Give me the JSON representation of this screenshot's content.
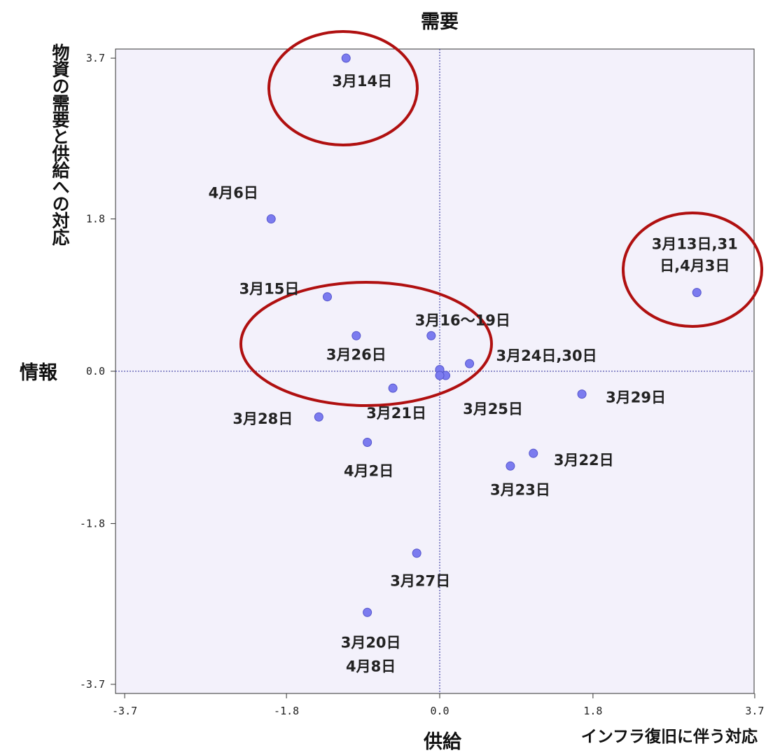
{
  "chart_data": {
    "type": "scatter",
    "title": "",
    "xlim": [
      -3.7,
      3.7
    ],
    "ylim": [
      -3.7,
      3.7
    ],
    "x_ticks": [
      "-3.7",
      "-1.8",
      "0.0",
      "1.8",
      "3.7"
    ],
    "y_ticks": [
      "3.7",
      "1.8",
      "0.0",
      "-1.8",
      "-3.7"
    ],
    "quadrant_labels": {
      "top": "需要",
      "bottom": "供給",
      "left": "情報",
      "bottom_right": "インフラ復旧に伴う対応",
      "left_vertical": "物資の需要と供給への対応"
    },
    "grid": false,
    "colors": {
      "point": "#7b7bef",
      "circle": "#b01010",
      "plot_bg": "#f3f1fb",
      "axis_line": "#2a2a9a"
    },
    "points": [
      {
        "label": "3月14日",
        "x": -1.1,
        "y": 3.7
      },
      {
        "label": "4月6日",
        "x": -1.98,
        "y": 1.8
      },
      {
        "label": "3月13日,31 日,4月3日",
        "x": 3.02,
        "y": 0.93
      },
      {
        "label": "3月15日",
        "x": -1.32,
        "y": 0.88
      },
      {
        "label": "3月26日",
        "x": -0.98,
        "y": 0.42
      },
      {
        "label": "3月16〜19日",
        "x": -0.1,
        "y": 0.42
      },
      {
        "label": "3月24日,30日",
        "x": 0.35,
        "y": 0.09
      },
      {
        "label": "",
        "x": 0.0,
        "y": 0.02
      },
      {
        "label": "",
        "x": 0.07,
        "y": -0.05
      },
      {
        "label": "3月25日",
        "x": 0.0,
        "y": -0.05
      },
      {
        "label": "3月21日",
        "x": -0.55,
        "y": -0.2
      },
      {
        "label": "3月29日",
        "x": 1.67,
        "y": -0.27
      },
      {
        "label": "3月28日",
        "x": -1.42,
        "y": -0.54
      },
      {
        "label": "4月2日",
        "x": -0.85,
        "y": -0.84
      },
      {
        "label": "3月22日",
        "x": 1.1,
        "y": -0.97
      },
      {
        "label": "3月23日",
        "x": 0.83,
        "y": -1.12
      },
      {
        "label": "3月27日",
        "x": -0.27,
        "y": -2.15
      },
      {
        "label": "3月20日 4月8日",
        "x": -0.85,
        "y": -2.85
      }
    ],
    "highlight_groups": [
      {
        "members": [
          "3月14日"
        ]
      },
      {
        "members": [
          "3月13日,31 日,4月3日"
        ]
      },
      {
        "members": [
          "3月15日",
          "3月26日",
          "3月16〜19日",
          "3月21日"
        ]
      }
    ]
  }
}
